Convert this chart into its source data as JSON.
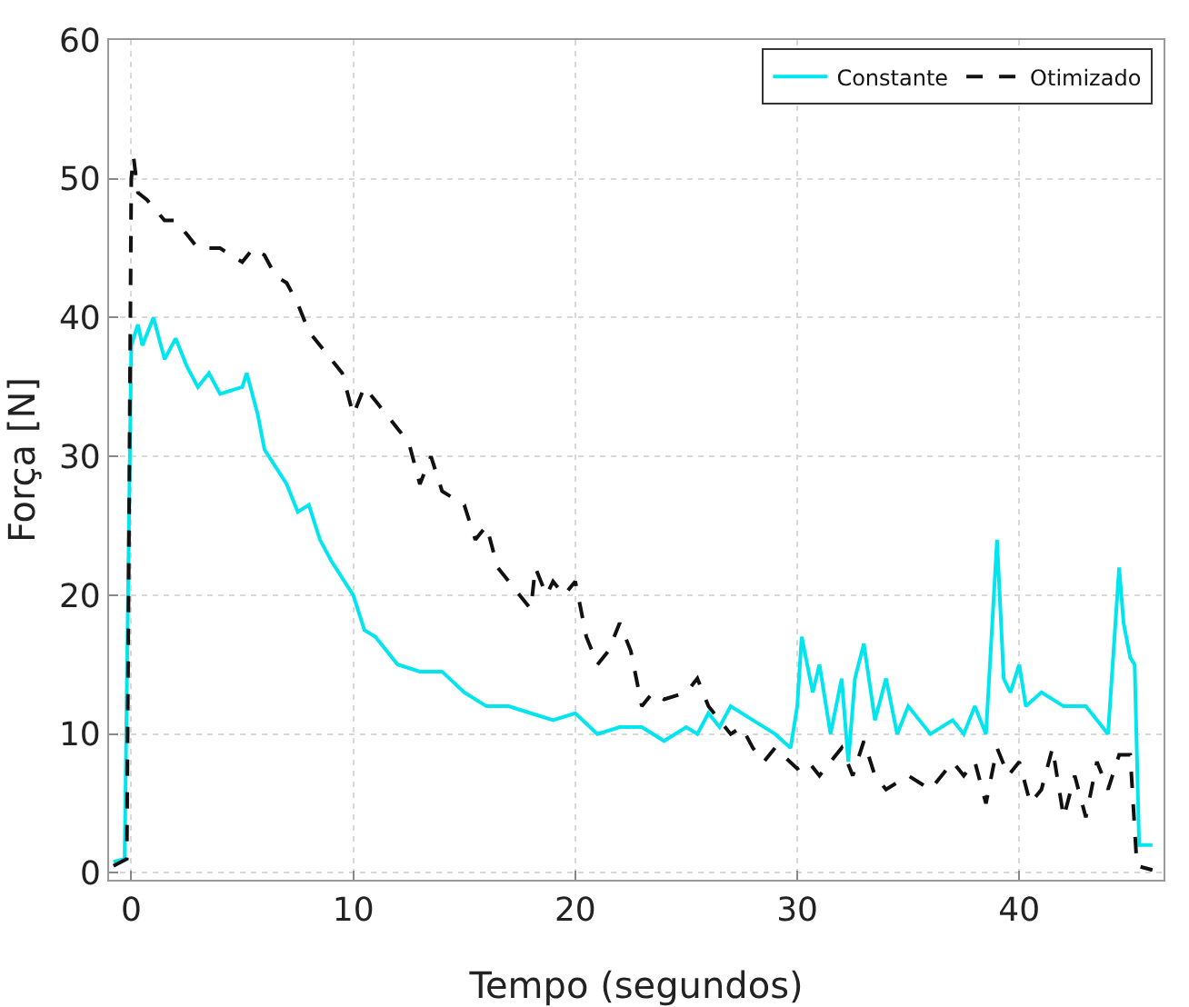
{
  "chart_data": {
    "type": "line",
    "xlabel": "Tempo (segundos)",
    "ylabel": "Força [N]",
    "xlim": [
      -1,
      46.5
    ],
    "ylim": [
      -0.5,
      60
    ],
    "xticks": [
      0,
      10,
      20,
      30,
      40
    ],
    "yticks": [
      0,
      10,
      20,
      30,
      40,
      50,
      60
    ],
    "grid": true,
    "legend": "top right",
    "marker": "none",
    "series": [
      {
        "name": "Constante",
        "color": "#00e5ee",
        "line_style": "solid",
        "x": [
          -0.8,
          -0.3,
          0,
          0.3,
          0.5,
          1,
          1.5,
          2,
          2.5,
          3,
          3.5,
          4,
          5,
          5.2,
          5.7,
          6,
          7,
          7.5,
          8,
          8.5,
          9,
          10,
          10.5,
          11,
          12,
          13,
          14,
          15,
          16,
          17,
          18,
          19,
          20,
          21,
          22,
          23,
          24,
          25,
          25.5,
          26,
          26.5,
          27,
          28,
          29,
          29.7,
          30,
          30.2,
          30.7,
          31,
          31.5,
          32,
          32.3,
          32.6,
          33,
          33.5,
          34,
          34.5,
          35,
          36,
          37,
          37.5,
          38,
          38.5,
          39,
          39.3,
          39.6,
          40,
          40.3,
          41,
          42,
          43,
          43.5,
          44,
          44.5,
          44.7,
          45,
          45.2,
          45.4,
          46
        ],
        "values": [
          0.8,
          1,
          38,
          39.5,
          38,
          40,
          37,
          38.5,
          36.5,
          35,
          36,
          34.5,
          35,
          36,
          33,
          30.5,
          28,
          26,
          26.5,
          24,
          22.5,
          20,
          17.5,
          17,
          15,
          14.5,
          14.5,
          13,
          12,
          12,
          11.5,
          11,
          11.5,
          10,
          10.5,
          10.5,
          9.5,
          10.5,
          10,
          11.5,
          10.5,
          12,
          11,
          10,
          9,
          12,
          17,
          13,
          15,
          10,
          14,
          8,
          14,
          16.5,
          11,
          14,
          10,
          12,
          10,
          11,
          10,
          12,
          10,
          24,
          14,
          13,
          15,
          12,
          13,
          12,
          12,
          11,
          10,
          22,
          18,
          15.5,
          15,
          2,
          2
        ]
      },
      {
        "name": "Otimizado",
        "color": "#111111",
        "line_style": "dashed",
        "x": [
          -0.8,
          -0.2,
          0,
          0.1,
          0.3,
          0.7,
          1.5,
          2,
          2.5,
          3,
          4,
          5,
          5.5,
          6,
          6.5,
          7,
          7.5,
          8,
          8.5,
          9,
          9.5,
          10,
          10.5,
          11,
          12,
          12.5,
          13,
          13.5,
          14,
          15,
          15.5,
          16,
          16.5,
          17,
          17.5,
          18,
          18.2,
          18.7,
          19,
          19.5,
          20,
          20.5,
          21,
          21.5,
          22,
          22.5,
          23,
          23.5,
          24,
          25,
          25.5,
          26,
          26.5,
          27,
          27.5,
          28,
          28.5,
          29,
          30,
          30.5,
          31,
          31.5,
          32,
          32.5,
          33,
          33.5,
          34,
          35,
          36,
          37,
          37.5,
          38,
          38.5,
          39,
          39.5,
          40,
          40.5,
          41,
          41.5,
          42,
          42.5,
          43,
          43.5,
          44,
          44.5,
          45,
          45.3,
          46
        ],
        "values": [
          0.5,
          1,
          50,
          51.6,
          49,
          48.5,
          47,
          47,
          46,
          45,
          45,
          44,
          45,
          44.5,
          43,
          42.5,
          41,
          39,
          38,
          37,
          36,
          33,
          35,
          34,
          32,
          31,
          28,
          30,
          27.5,
          26.5,
          24,
          25,
          22,
          21,
          20,
          19,
          22,
          20,
          21,
          20,
          21,
          17,
          15,
          16,
          18,
          16,
          12,
          13,
          12.5,
          13,
          14,
          12,
          11,
          10,
          10.5,
          9,
          8,
          9,
          7.5,
          8,
          7,
          8,
          9,
          7,
          9.5,
          7,
          6,
          7,
          6,
          8,
          7,
          8,
          5,
          9,
          7,
          8,
          5,
          6,
          9,
          4,
          7,
          4,
          8,
          6,
          8.5,
          8.5,
          0.5,
          0.2
        ]
      }
    ]
  }
}
